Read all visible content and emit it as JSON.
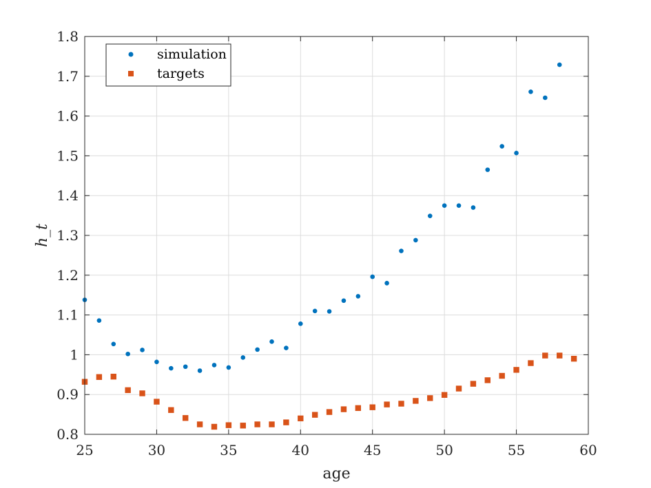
{
  "chart_data": {
    "type": "scatter",
    "xlabel": "age",
    "ylabel": "h_t",
    "xlim": [
      25,
      60
    ],
    "ylim": [
      0.8,
      1.8
    ],
    "xticks": [
      "25",
      "30",
      "35",
      "40",
      "45",
      "50",
      "55",
      "60"
    ],
    "yticks": [
      "0.8",
      "0.9",
      "1",
      "1.1",
      "1.2",
      "1.3",
      "1.4",
      "1.5",
      "1.6",
      "1.7",
      "1.8"
    ],
    "grid": true,
    "legend_position": "top-left",
    "series": [
      {
        "name": "simulation",
        "marker": "circle",
        "color": "#0072BD",
        "x": [
          25,
          26,
          27,
          28,
          29,
          30,
          31,
          32,
          33,
          34,
          35,
          36,
          37,
          38,
          39,
          40,
          41,
          42,
          43,
          44,
          45,
          46,
          47,
          48,
          49,
          50,
          51,
          52,
          53,
          54,
          55,
          56,
          57,
          58
        ],
        "y": [
          1.138,
          1.086,
          1.027,
          1.002,
          1.012,
          0.982,
          0.966,
          0.97,
          0.96,
          0.974,
          0.968,
          0.993,
          1.013,
          1.033,
          1.017,
          1.078,
          1.11,
          1.109,
          1.136,
          1.147,
          1.196,
          1.18,
          1.261,
          1.288,
          1.349,
          1.375,
          1.375,
          1.37,
          1.465,
          1.524,
          1.507,
          1.661,
          1.646,
          1.729
        ]
      },
      {
        "name": "targets",
        "marker": "square",
        "color": "#D95319",
        "x": [
          25,
          26,
          27,
          28,
          29,
          30,
          31,
          32,
          33,
          34,
          35,
          36,
          37,
          38,
          39,
          40,
          41,
          42,
          43,
          44,
          45,
          46,
          47,
          48,
          49,
          50,
          51,
          52,
          53,
          54,
          55,
          56,
          57,
          58,
          59
        ],
        "y": [
          0.932,
          0.944,
          0.945,
          0.911,
          0.903,
          0.882,
          0.861,
          0.841,
          0.825,
          0.819,
          0.823,
          0.822,
          0.825,
          0.825,
          0.83,
          0.84,
          0.849,
          0.856,
          0.863,
          0.866,
          0.868,
          0.875,
          0.877,
          0.884,
          0.891,
          0.899,
          0.915,
          0.927,
          0.936,
          0.947,
          0.962,
          0.979,
          0.998,
          0.998,
          0.99
        ]
      }
    ]
  }
}
